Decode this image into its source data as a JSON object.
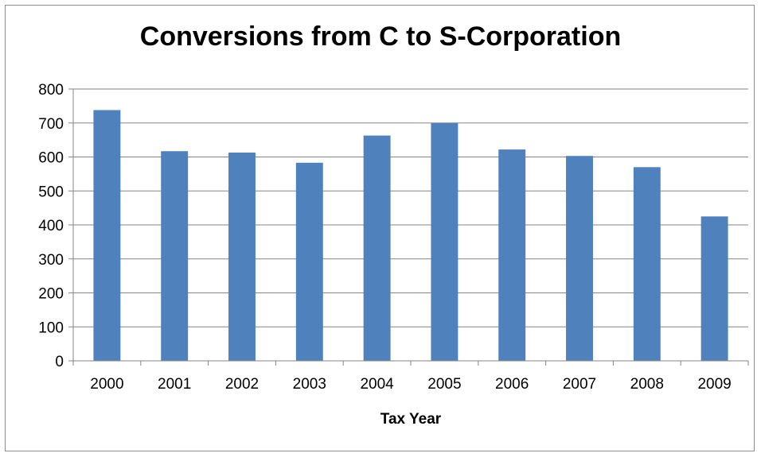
{
  "chart_data": {
    "type": "bar",
    "title": "Conversions from C to S-Corporation",
    "xlabel": "Tax Year",
    "ylabel": "",
    "categories": [
      "2000",
      "2001",
      "2002",
      "2003",
      "2004",
      "2005",
      "2006",
      "2007",
      "2008",
      "2009"
    ],
    "values": [
      738,
      617,
      613,
      583,
      663,
      700,
      622,
      603,
      570,
      425
    ],
    "ylim": [
      0,
      800
    ],
    "yticks": [
      0,
      100,
      200,
      300,
      400,
      500,
      600,
      700,
      800
    ],
    "grid": true,
    "legend": "none",
    "bar_color": "#4f81bd",
    "grid_color": "#868686"
  }
}
